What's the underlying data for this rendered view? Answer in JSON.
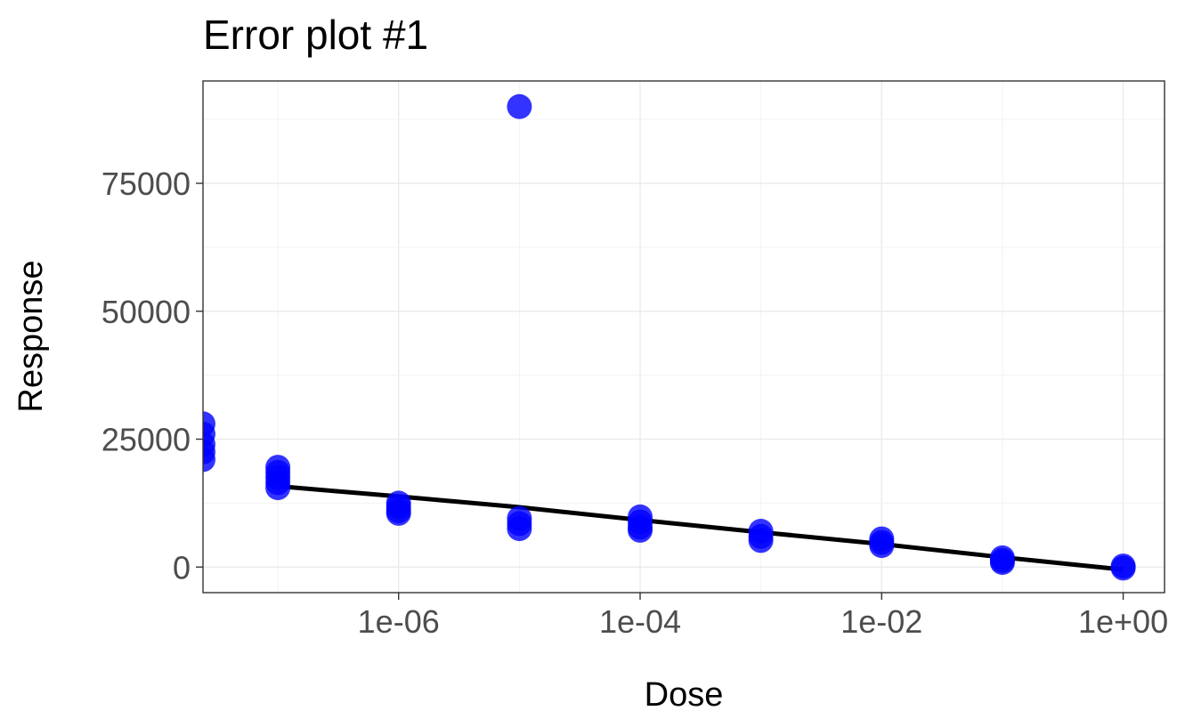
{
  "chart_data": {
    "type": "scatter",
    "title": "Error plot #1",
    "xlabel": "Dose",
    "ylabel": "Response",
    "x_scale": "log10",
    "xlim": [
      2.4e-08,
      2.2
    ],
    "ylim": [
      -5000,
      95000
    ],
    "x_ticks": [
      {
        "value": 1e-06,
        "label": "1e-06"
      },
      {
        "value": 0.0001,
        "label": "1e-04"
      },
      {
        "value": 0.01,
        "label": "1e-02"
      },
      {
        "value": 1,
        "label": "1e+00"
      }
    ],
    "y_ticks": [
      {
        "value": 0,
        "label": "0"
      },
      {
        "value": 25000,
        "label": "25000"
      },
      {
        "value": 50000,
        "label": "50000"
      },
      {
        "value": 75000,
        "label": "75000"
      }
    ],
    "grid": true,
    "point_color": "#0000ff",
    "line_color": "#000000",
    "points": [
      {
        "x": 2.4e-08,
        "y": 28000
      },
      {
        "x": 2.4e-08,
        "y": 26000
      },
      {
        "x": 2.4e-08,
        "y": 24000
      },
      {
        "x": 2.4e-08,
        "y": 22500
      },
      {
        "x": 2.4e-08,
        "y": 21000
      },
      {
        "x": 1e-07,
        "y": 19500
      },
      {
        "x": 1e-07,
        "y": 18500
      },
      {
        "x": 1e-07,
        "y": 17500
      },
      {
        "x": 1e-07,
        "y": 16500
      },
      {
        "x": 1e-07,
        "y": 15500
      },
      {
        "x": 1e-06,
        "y": 12500
      },
      {
        "x": 1e-06,
        "y": 11800
      },
      {
        "x": 1e-06,
        "y": 11000
      },
      {
        "x": 1e-06,
        "y": 10500
      },
      {
        "x": 1e-05,
        "y": 90000
      },
      {
        "x": 1e-05,
        "y": 9500
      },
      {
        "x": 1e-05,
        "y": 8500
      },
      {
        "x": 1e-05,
        "y": 7500
      },
      {
        "x": 0.0001,
        "y": 9800
      },
      {
        "x": 0.0001,
        "y": 8800
      },
      {
        "x": 0.0001,
        "y": 7800
      },
      {
        "x": 0.0001,
        "y": 7200
      },
      {
        "x": 0.001,
        "y": 7000
      },
      {
        "x": 0.001,
        "y": 6000
      },
      {
        "x": 0.001,
        "y": 5200
      },
      {
        "x": 0.01,
        "y": 5500
      },
      {
        "x": 0.01,
        "y": 4800
      },
      {
        "x": 0.01,
        "y": 4200
      },
      {
        "x": 0.1,
        "y": 1800
      },
      {
        "x": 0.1,
        "y": 1300
      },
      {
        "x": 0.1,
        "y": 900
      },
      {
        "x": 1,
        "y": 200
      },
      {
        "x": 1,
        "y": -200
      }
    ],
    "fit_line": [
      {
        "x": 1e-07,
        "y": 15800
      },
      {
        "x": 1e-06,
        "y": 13800
      },
      {
        "x": 1e-05,
        "y": 11700
      },
      {
        "x": 0.0001,
        "y": 9200
      },
      {
        "x": 0.001,
        "y": 6800
      },
      {
        "x": 0.01,
        "y": 4500
      },
      {
        "x": 0.1,
        "y": 1900
      },
      {
        "x": 1,
        "y": -500
      }
    ]
  }
}
